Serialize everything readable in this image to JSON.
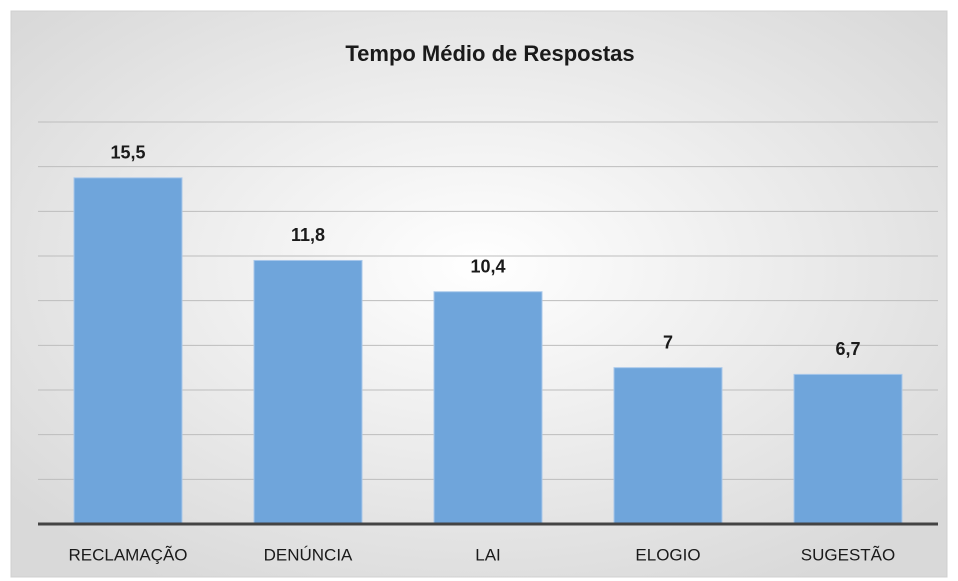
{
  "chart_data": {
    "type": "bar",
    "title": "Tempo Médio de Respostas",
    "categories": [
      "RECLAMAÇÃO",
      "DENÚNCIA",
      "LAI",
      "ELOGIO",
      "SUGESTÃO"
    ],
    "values": [
      15.5,
      11.8,
      10.4,
      7,
      6.7
    ],
    "value_labels": [
      "15,5",
      "11,8",
      "10,4",
      "7",
      "6,7"
    ],
    "color": "#6fa5db",
    "ylim": [
      0,
      18
    ],
    "yticks": [
      0,
      2,
      4,
      6,
      8,
      10,
      12,
      14,
      16,
      18
    ],
    "grid": true
  }
}
